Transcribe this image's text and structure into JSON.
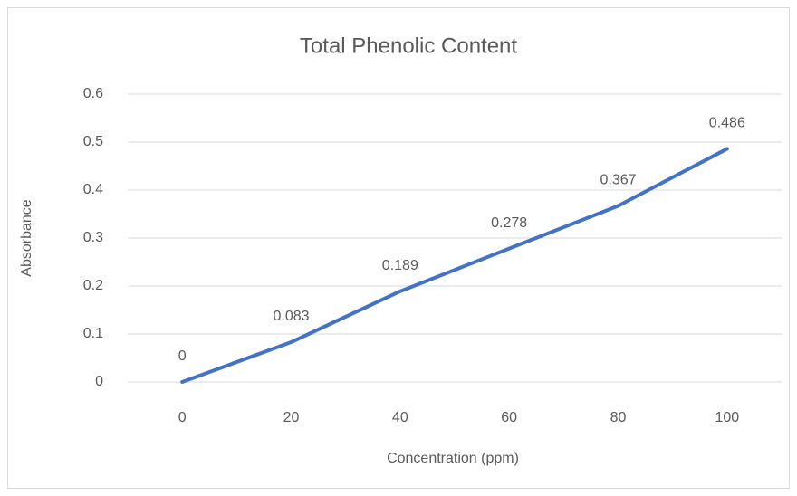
{
  "chart_data": {
    "type": "line",
    "title": "Total Phenolic Content",
    "x_label": "Concentration (ppm)",
    "y_label": "Absorbance",
    "categories": [
      "0",
      "20",
      "40",
      "60",
      "80",
      "100"
    ],
    "series": [
      {
        "name": "Absorbance",
        "color": "#4472c4",
        "values": [
          0,
          0.083,
          0.189,
          0.278,
          0.367,
          0.486
        ]
      }
    ],
    "ylim": [
      0,
      0.6
    ],
    "yticks": [
      0,
      0.1,
      0.2,
      0.3,
      0.4,
      0.5,
      0.6
    ],
    "grid": true,
    "data_labels": true
  }
}
